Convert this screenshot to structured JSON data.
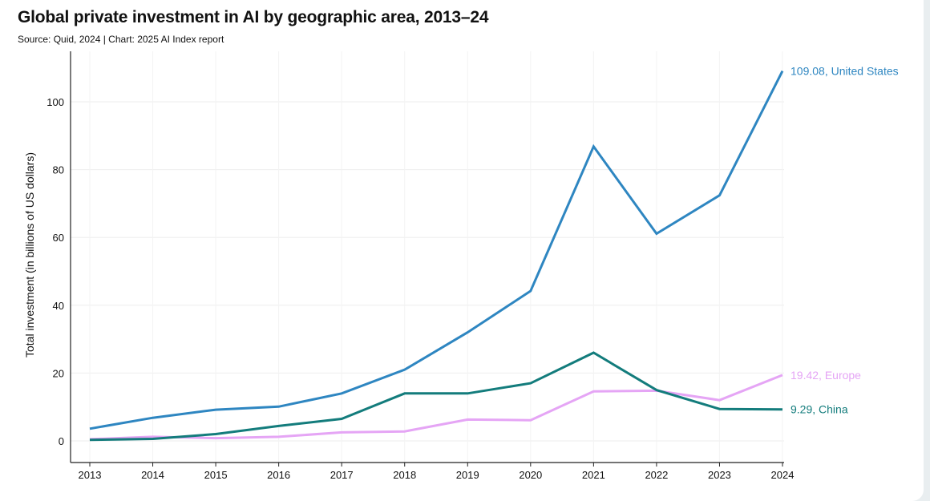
{
  "header": {
    "title": "Global private investment in AI by geographic area, 2013–24",
    "subtitle": "Source: Quid, 2024 | Chart: 2025 AI Index report"
  },
  "chart_data": {
    "type": "line",
    "title": "Global private investment in AI by geographic area, 2013–24",
    "ylabel": "Total investment (in billions of US dollars)",
    "xlabel": "",
    "x": [
      2013,
      2014,
      2015,
      2016,
      2017,
      2018,
      2019,
      2020,
      2021,
      2022,
      2023,
      2024
    ],
    "ylim": [
      -6,
      112
    ],
    "yticks": [
      0,
      20,
      40,
      60,
      80,
      100
    ],
    "grid": true,
    "series": [
      {
        "name": "United States",
        "color": "#2e86c1",
        "values": [
          3.6,
          6.8,
          9.2,
          10.1,
          14.0,
          21.0,
          32.0,
          44.2,
          86.8,
          61.1,
          72.4,
          109.08
        ],
        "end_label": "109.08, United States"
      },
      {
        "name": "China",
        "color": "#137c7c",
        "values": [
          0.3,
          0.6,
          2.0,
          4.4,
          6.5,
          14.0,
          14.0,
          17.0,
          26.0,
          15.0,
          9.4,
          9.29
        ],
        "end_label": "9.29, China"
      },
      {
        "name": "Europe",
        "color": "#e5a5f5",
        "values": [
          0.5,
          1.2,
          0.8,
          1.2,
          2.5,
          2.8,
          6.3,
          6.1,
          14.6,
          14.8,
          12.0,
          19.42
        ],
        "end_label": "19.42, Europe"
      }
    ]
  }
}
